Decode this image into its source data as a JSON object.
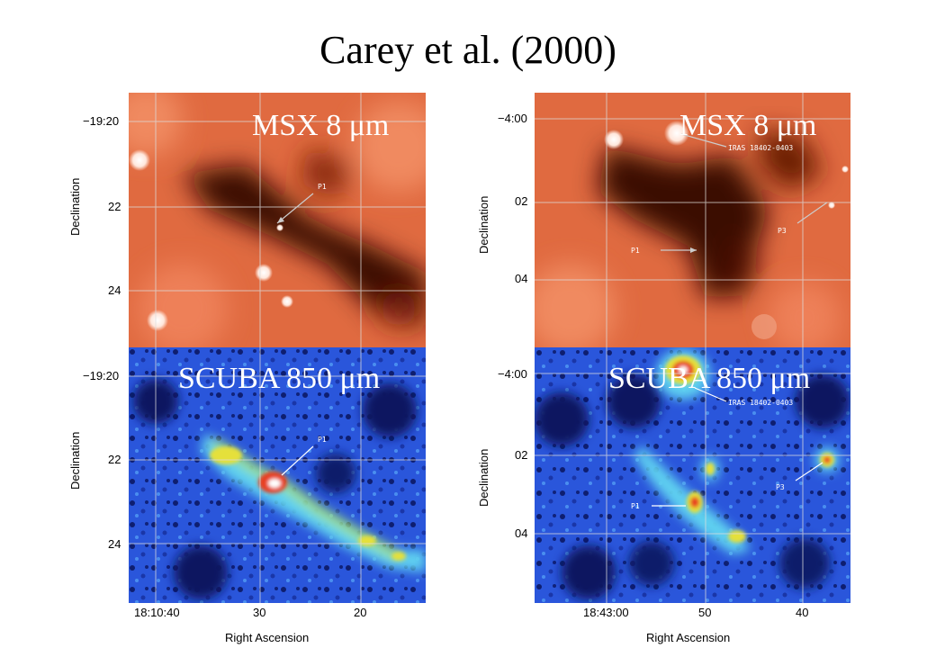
{
  "title": "Carey et al. (2000)",
  "panels": {
    "msx_label": "MSX  8 μm",
    "scuba_label": "SCUBA  850 μm"
  },
  "left": {
    "dec_ticks": [
      "−19:20",
      "22",
      "24"
    ],
    "dec_ticks_lower": [
      "−19:20",
      "22",
      "24"
    ],
    "ra_ticks": [
      "18:10:40",
      "30",
      "20"
    ],
    "ylabel": "Declination",
    "xlabel": "Right Ascension",
    "annotations": {
      "p1": "P1"
    }
  },
  "right": {
    "dec_ticks": [
      "−4:00",
      "02",
      "04"
    ],
    "dec_ticks_lower": [
      "−4:00",
      "02",
      "04"
    ],
    "ra_ticks": [
      "18:43:00",
      "50",
      "40"
    ],
    "ylabel": "Declination",
    "xlabel": "Right Ascension",
    "annotations": {
      "p1": "P1",
      "p3": "P3",
      "iras": "IRAS 18402-0403"
    }
  },
  "colors": {
    "msx_bg": "#e8744a",
    "scuba_bg": "#2b55d8"
  }
}
